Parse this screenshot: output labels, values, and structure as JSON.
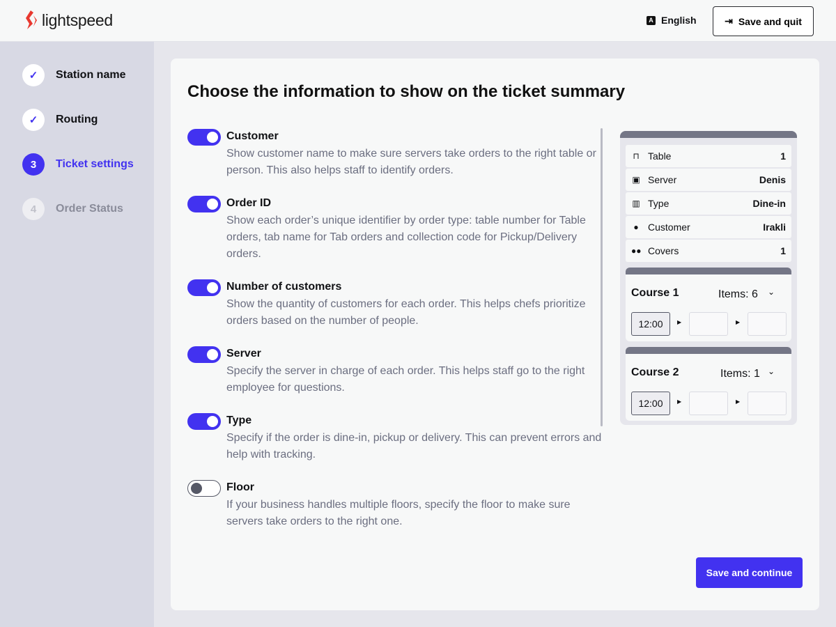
{
  "header": {
    "logo": "lightspeed",
    "language": "English",
    "save_quit": "Save and quit"
  },
  "steps": [
    {
      "label": "Station name",
      "status": "done",
      "marker": "✓"
    },
    {
      "label": "Routing",
      "status": "done",
      "marker": "✓"
    },
    {
      "label": "Ticket settings",
      "status": "active",
      "marker": "3"
    },
    {
      "label": "Order Status",
      "status": "pending",
      "marker": "4"
    }
  ],
  "main": {
    "title": "Choose the information to show on the ticket summary",
    "options": [
      {
        "title": "Customer",
        "enabled": true,
        "desc": "Show customer name to make sure servers take orders to the right table or person. This also helps staff to identify orders."
      },
      {
        "title": "Order ID",
        "enabled": true,
        "desc": "Show each order’s unique identifier by order type: table number for Table orders, tab name for Tab orders and collection code for Pickup/Delivery orders."
      },
      {
        "title": "Number of customers",
        "enabled": true,
        "desc": "Show the quantity of customers for each order. This helps chefs prioritize orders based on the number of people."
      },
      {
        "title": "Server",
        "enabled": true,
        "desc": "Specify the server in charge of each order. This helps staff go to the right employee for questions."
      },
      {
        "title": "Type",
        "enabled": true,
        "desc": "Specify if the order is dine-in, pickup or delivery. This can prevent errors and help with tracking."
      },
      {
        "title": "Floor",
        "enabled": false,
        "desc": "If your business handles multiple floors, specify the floor to make sure servers take orders to the right one."
      }
    ],
    "save_continue": "Save and continue"
  },
  "preview": {
    "rows": [
      {
        "icon": "table-icon",
        "label": "Table",
        "value": "1"
      },
      {
        "icon": "badge-icon",
        "label": "Server",
        "value": "Denis"
      },
      {
        "icon": "cutlery-icon",
        "label": "Type",
        "value": "Dine-in"
      },
      {
        "icon": "person-icon",
        "label": "Customer",
        "value": "Irakli"
      },
      {
        "icon": "people-icon",
        "label": "Covers",
        "value": "1"
      }
    ],
    "courses": [
      {
        "name": "Course 1",
        "items": "Items: 6",
        "time": "12:00"
      },
      {
        "name": "Course 2",
        "items": "Items: 1",
        "time": "12:00"
      }
    ]
  },
  "colors": {
    "accent": "#4232f0",
    "logo": "#e8382f"
  }
}
